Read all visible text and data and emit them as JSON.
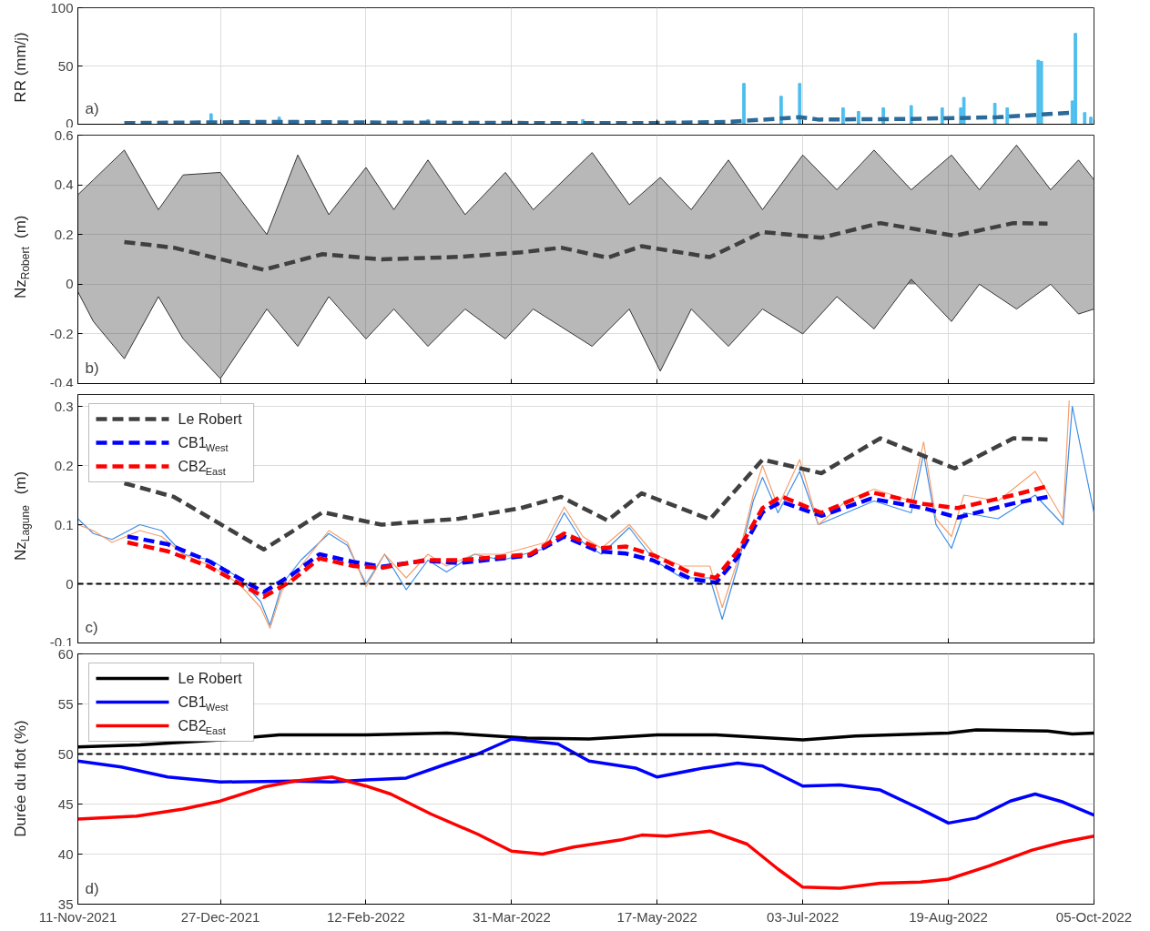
{
  "chart_data": [
    {
      "type": "bar",
      "ylabel": "RR (mm/j)",
      "annotations": [
        "a)"
      ],
      "xlim": [
        "2021-11-11",
        "2022-10-05"
      ],
      "ylim": [
        0,
        100
      ],
      "yticks": [
        0,
        50,
        100
      ],
      "grid": true,
      "tick_labels": "y",
      "xticks": [
        "2021-11-11",
        "2021-12-27",
        "2022-02-12",
        "2022-03-31",
        "2022-05-17",
        "2022-07-03",
        "2022-08-19",
        "2022-10-05"
      ],
      "series": [
        {
          "type": "bar",
          "color": "#4dbeee",
          "x": [
            "2021-12-24",
            "2022-01-15",
            "2022-03-04",
            "2022-04-23",
            "2022-06-14",
            "2022-06-26",
            "2022-07-02",
            "2022-07-16",
            "2022-07-21",
            "2022-07-29",
            "2022-08-07",
            "2022-08-17",
            "2022-08-23",
            "2022-08-24",
            "2022-09-03",
            "2022-09-07",
            "2022-09-17",
            "2022-09-18",
            "2022-09-28",
            "2022-09-29",
            "2022-10-02",
            "2022-10-04"
          ],
          "values": [
            9,
            6,
            4,
            4,
            35,
            24,
            35,
            14,
            11,
            14,
            16,
            14,
            14,
            23,
            18,
            14,
            55,
            54,
            20,
            78,
            10,
            6
          ]
        },
        {
          "type": "line",
          "line_style": "dashed",
          "color": "#2b6a99",
          "x": [
            "2021-11-26",
            "2022-01-14",
            "2022-02-12",
            "2022-04-11",
            "2022-05-16",
            "2022-06-09",
            "2022-07-02",
            "2022-07-08",
            "2022-08-06",
            "2022-09-04",
            "2022-09-28"
          ],
          "values": [
            1,
            2,
            1.5,
            1,
            1,
            2,
            6,
            4,
            4.5,
            6,
            10
          ]
        }
      ]
    },
    {
      "type": "line",
      "ylabel": "Nz$_{Robert}$ (m)",
      "annotations": [
        "b)"
      ],
      "xlim": [
        "2021-11-11",
        "2022-10-05"
      ],
      "ylim": [
        -0.4,
        0.6
      ],
      "yticks": [
        -0.4,
        -0.2,
        0,
        0.2,
        0.4,
        0.6
      ],
      "grid": true,
      "tick_labels": "y",
      "xticks": [
        "2021-11-11",
        "2021-12-27",
        "2022-02-12",
        "2022-03-31",
        "2022-05-17",
        "2022-07-03",
        "2022-08-19",
        "2022-10-05"
      ],
      "series": [
        {
          "type": "area",
          "color": "#333333",
          "x": [
            "2021-11-11",
            "2021-11-16",
            "2021-11-26",
            "2021-12-07",
            "2021-12-15",
            "2021-12-27",
            "2022-01-11",
            "2022-01-21",
            "2022-01-31",
            "2022-02-12",
            "2022-02-21",
            "2022-03-04",
            "2022-03-16",
            "2022-03-29",
            "2022-04-07",
            "2022-04-26",
            "2022-05-08",
            "2022-05-18",
            "2022-05-28",
            "2022-06-09",
            "2022-06-20",
            "2022-07-03",
            "2022-07-14",
            "2022-07-26",
            "2022-08-07",
            "2022-08-20",
            "2022-08-29",
            "2022-09-10",
            "2022-09-21",
            "2022-09-30",
            "2022-10-05"
          ],
          "values": [
            0.36,
            0.42,
            0.54,
            0.3,
            0.44,
            0.45,
            0.2,
            0.52,
            0.28,
            0.47,
            0.3,
            0.5,
            0.28,
            0.45,
            0.3,
            0.53,
            0.32,
            0.43,
            0.3,
            0.5,
            0.3,
            0.52,
            0.38,
            0.54,
            0.38,
            0.52,
            0.38,
            0.56,
            0.38,
            0.5,
            0.42
          ]
        },
        {
          "type": "area",
          "color": "#333333",
          "x": [
            "2021-11-11",
            "2021-11-16",
            "2021-11-26",
            "2021-12-07",
            "2021-12-15",
            "2021-12-27",
            "2022-01-11",
            "2022-01-21",
            "2022-01-31",
            "2022-02-12",
            "2022-02-21",
            "2022-03-04",
            "2022-03-16",
            "2022-03-29",
            "2022-04-07",
            "2022-04-26",
            "2022-05-08",
            "2022-05-18",
            "2022-05-28",
            "2022-06-09",
            "2022-06-20",
            "2022-07-03",
            "2022-07-14",
            "2022-07-26",
            "2022-08-07",
            "2022-08-20",
            "2022-08-29",
            "2022-09-10",
            "2022-09-21",
            "2022-09-30",
            "2022-10-05"
          ],
          "values": [
            -0.03,
            -0.15,
            -0.3,
            -0.05,
            -0.22,
            -0.38,
            -0.1,
            -0.25,
            -0.05,
            -0.22,
            -0.1,
            -0.25,
            -0.1,
            -0.22,
            -0.1,
            -0.25,
            -0.1,
            -0.35,
            -0.1,
            -0.25,
            -0.1,
            -0.2,
            -0.05,
            -0.18,
            0.02,
            -0.15,
            0.0,
            -0.1,
            0.0,
            -0.12,
            -0.1
          ]
        },
        {
          "line_style": "dashed",
          "color": "#404040",
          "x": [
            "2021-11-26",
            "2021-12-12",
            "2022-01-10",
            "2022-01-29",
            "2022-02-17",
            "2022-03-14",
            "2022-04-03",
            "2022-04-16",
            "2022-05-01",
            "2022-05-12",
            "2022-06-03",
            "2022-06-20",
            "2022-07-09",
            "2022-07-28",
            "2022-08-21",
            "2022-09-09",
            "2022-09-20"
          ],
          "values": [
            0.17,
            0.147,
            0.058,
            0.121,
            0.1,
            0.11,
            0.128,
            0.147,
            0.107,
            0.153,
            0.109,
            0.21,
            0.187,
            0.246,
            0.195,
            0.246,
            0.244
          ]
        }
      ]
    },
    {
      "type": "line",
      "ylabel": "Nz$_{Lagune}$ (m)",
      "annotations": [
        "c)"
      ],
      "xlim": [
        "2021-11-11",
        "2022-10-05"
      ],
      "ylim": [
        -0.1,
        0.32
      ],
      "yticks": [
        -0.1,
        0,
        0.1,
        0.2,
        0.3
      ],
      "grid": true,
      "tick_labels": "y",
      "legend": "top left",
      "xticks": [
        "2021-11-11",
        "2021-12-27",
        "2022-02-12",
        "2022-03-31",
        "2022-05-17",
        "2022-07-03",
        "2022-08-19",
        "2022-10-05"
      ],
      "ref_lines": [
        {
          "axis": "y",
          "value": 0,
          "color": "#000000",
          "line_style": "dashed"
        }
      ],
      "series": [
        {
          "color": "#3d8ee8",
          "x": [
            "2021-11-11",
            "2021-11-16",
            "2021-11-22",
            "2021-12-01",
            "2021-12-08",
            "2021-12-15",
            "2021-12-24",
            "2022-01-02",
            "2022-01-09",
            "2022-01-12",
            "2022-01-16",
            "2022-01-22",
            "2022-01-31",
            "2022-02-06",
            "2022-02-12",
            "2022-02-18",
            "2022-02-25",
            "2022-03-04",
            "2022-03-10",
            "2022-03-19",
            "2022-03-28",
            "2022-04-11",
            "2022-04-17",
            "2022-04-23",
            "2022-04-29",
            "2022-05-08",
            "2022-05-16",
            "2022-05-25",
            "2022-06-03",
            "2022-06-07",
            "2022-06-12",
            "2022-06-17",
            "2022-06-20",
            "2022-06-25",
            "2022-07-02",
            "2022-07-08",
            "2022-07-17",
            "2022-07-26",
            "2022-08-07",
            "2022-08-11",
            "2022-08-15",
            "2022-08-20",
            "2022-08-24",
            "2022-09-04",
            "2022-09-16",
            "2022-09-25",
            "2022-09-28",
            "2022-10-05"
          ],
          "values": [
            0.11,
            0.085,
            0.075,
            0.1,
            0.09,
            0.05,
            0.04,
            0.01,
            -0.03,
            -0.07,
            0.0,
            0.04,
            0.085,
            0.065,
            0.0,
            0.05,
            -0.01,
            0.04,
            0.02,
            0.05,
            0.04,
            0.06,
            0.12,
            0.07,
            0.05,
            0.095,
            0.04,
            0.01,
            0.01,
            -0.06,
            0.03,
            0.14,
            0.18,
            0.12,
            0.19,
            0.1,
            0.12,
            0.14,
            0.12,
            0.22,
            0.1,
            0.06,
            0.12,
            0.11,
            0.15,
            0.1,
            0.3,
            0.12
          ]
        },
        {
          "color": "#f5a06e",
          "x": [
            "2021-11-11",
            "2021-11-16",
            "2021-11-22",
            "2021-12-01",
            "2021-12-08",
            "2021-12-15",
            "2021-12-24",
            "2022-01-02",
            "2022-01-09",
            "2022-01-12",
            "2022-01-16",
            "2022-01-22",
            "2022-01-31",
            "2022-02-06",
            "2022-02-12",
            "2022-02-18",
            "2022-02-25",
            "2022-03-04",
            "2022-03-10",
            "2022-03-19",
            "2022-03-28",
            "2022-04-11",
            "2022-04-17",
            "2022-04-23",
            "2022-04-29",
            "2022-05-08",
            "2022-05-16",
            "2022-05-25",
            "2022-06-03",
            "2022-06-07",
            "2022-06-12",
            "2022-06-17",
            "2022-06-20",
            "2022-06-25",
            "2022-07-02",
            "2022-07-08",
            "2022-07-17",
            "2022-07-26",
            "2022-08-07",
            "2022-08-11",
            "2022-08-15",
            "2022-08-20",
            "2022-08-24",
            "2022-09-04",
            "2022-09-16",
            "2022-09-25",
            "2022-09-27"
          ],
          "values": [
            0.1,
            0.09,
            0.07,
            0.09,
            0.08,
            0.05,
            0.03,
            0.0,
            -0.04,
            -0.075,
            -0.01,
            0.03,
            0.09,
            0.07,
            -0.005,
            0.05,
            0.01,
            0.05,
            0.03,
            0.05,
            0.05,
            0.07,
            0.13,
            0.08,
            0.06,
            0.1,
            0.05,
            0.03,
            0.03,
            -0.04,
            0.04,
            0.15,
            0.2,
            0.13,
            0.21,
            0.1,
            0.14,
            0.16,
            0.14,
            0.24,
            0.11,
            0.08,
            0.15,
            0.14,
            0.19,
            0.11,
            0.31
          ]
        },
        {
          "name": "Le Robert",
          "line_style": "dashed",
          "color": "#404040",
          "x": [
            "2021-11-26",
            "2021-12-12",
            "2022-01-10",
            "2022-01-29",
            "2022-02-17",
            "2022-03-14",
            "2022-04-03",
            "2022-04-16",
            "2022-05-01",
            "2022-05-12",
            "2022-06-03",
            "2022-06-20",
            "2022-07-09",
            "2022-07-28",
            "2022-08-21",
            "2022-09-09",
            "2022-09-20"
          ],
          "values": [
            0.17,
            0.147,
            0.058,
            0.121,
            0.1,
            0.11,
            0.128,
            0.147,
            0.107,
            0.153,
            0.109,
            0.21,
            0.187,
            0.246,
            0.195,
            0.246,
            0.244
          ]
        },
        {
          "name": "CB1$_{West}$",
          "line_style": "dashed",
          "color": "#0000ff",
          "x": [
            "2021-11-27",
            "2021-12-10",
            "2021-12-23",
            "2022-01-10",
            "2022-01-19",
            "2022-01-28",
            "2022-02-08",
            "2022-02-17",
            "2022-03-03",
            "2022-03-14",
            "2022-04-06",
            "2022-04-17",
            "2022-04-28",
            "2022-05-07",
            "2022-05-16",
            "2022-05-28",
            "2022-06-05",
            "2022-06-12",
            "2022-06-20",
            "2022-06-26",
            "2022-07-09",
            "2022-07-25",
            "2022-08-11",
            "2022-08-22",
            "2022-09-09",
            "2022-09-20"
          ],
          "values": [
            0.08,
            0.067,
            0.039,
            -0.014,
            0.015,
            0.05,
            0.037,
            0.029,
            0.039,
            0.035,
            0.048,
            0.08,
            0.055,
            0.051,
            0.039,
            0.008,
            0.002,
            0.045,
            0.121,
            0.139,
            0.115,
            0.144,
            0.128,
            0.112,
            0.136,
            0.147
          ]
        },
        {
          "name": "CB2$_{East}$",
          "line_style": "dashed",
          "color": "#ff0000",
          "x": [
            "2021-11-27",
            "2021-12-10",
            "2021-12-23",
            "2022-01-10",
            "2022-01-19",
            "2022-01-28",
            "2022-02-08",
            "2022-02-17",
            "2022-03-03",
            "2022-03-14",
            "2022-04-06",
            "2022-04-17",
            "2022-04-28",
            "2022-05-07",
            "2022-05-16",
            "2022-05-28",
            "2022-06-05",
            "2022-06-12",
            "2022-06-20",
            "2022-06-26",
            "2022-07-09",
            "2022-07-25",
            "2022-08-11",
            "2022-08-22",
            "2022-09-09",
            "2022-09-20"
          ],
          "values": [
            0.07,
            0.055,
            0.03,
            -0.022,
            0.005,
            0.043,
            0.03,
            0.027,
            0.04,
            0.04,
            0.05,
            0.085,
            0.06,
            0.063,
            0.048,
            0.018,
            0.01,
            0.055,
            0.128,
            0.148,
            0.12,
            0.155,
            0.135,
            0.128,
            0.15,
            0.165
          ]
        }
      ]
    },
    {
      "type": "line",
      "ylabel": "Durée du flot (%)",
      "annotations": [
        "d)"
      ],
      "xlim": [
        "2021-11-11",
        "2022-10-05"
      ],
      "ylim": [
        35,
        60
      ],
      "yticks": [
        35,
        40,
        45,
        50,
        55,
        60
      ],
      "grid": true,
      "legend": "top left",
      "xticks": [
        {
          "value": "2021-11-11",
          "label": "11-Nov-2021"
        },
        {
          "value": "2021-12-27",
          "label": "27-Dec-2021"
        },
        {
          "value": "2022-02-12",
          "label": "12-Feb-2022"
        },
        {
          "value": "2022-03-31",
          "label": "31-Mar-2022"
        },
        {
          "value": "2022-05-17",
          "label": "17-May-2022"
        },
        {
          "value": "2022-07-03",
          "label": "03-Jul-2022"
        },
        {
          "value": "2022-08-19",
          "label": "19-Aug-2022"
        },
        {
          "value": "2022-10-05",
          "label": "05-Oct-2022"
        }
      ],
      "ref_lines": [
        {
          "axis": "y",
          "value": 50,
          "color": "#000000",
          "line_style": "dashed"
        }
      ],
      "series": [
        {
          "name": "Le Robert",
          "color": "#000000",
          "x": [
            "2021-11-11",
            "2021-12-01",
            "2021-12-27",
            "2022-01-15",
            "2022-02-12",
            "2022-03-10",
            "2022-04-05",
            "2022-04-25",
            "2022-05-17",
            "2022-06-05",
            "2022-07-03",
            "2022-07-20",
            "2022-08-19",
            "2022-08-28",
            "2022-09-20",
            "2022-09-28",
            "2022-10-05"
          ],
          "values": [
            50.7,
            50.9,
            51.4,
            51.9,
            51.9,
            52.1,
            51.6,
            51.5,
            51.9,
            51.9,
            51.4,
            51.8,
            52.1,
            52.4,
            52.3,
            52.0,
            52.1
          ]
        },
        {
          "name": "CB1$_{West}$",
          "color": "#0000ff",
          "x": [
            "2021-11-11",
            "2021-11-25",
            "2021-12-10",
            "2021-12-27",
            "2022-01-20",
            "2022-02-01",
            "2022-02-12",
            "2022-02-25",
            "2022-03-10",
            "2022-03-20",
            "2022-03-31",
            "2022-04-15",
            "2022-04-25",
            "2022-05-10",
            "2022-05-17",
            "2022-06-01",
            "2022-06-12",
            "2022-06-20",
            "2022-07-03",
            "2022-07-15",
            "2022-07-28",
            "2022-08-10",
            "2022-08-19",
            "2022-08-28",
            "2022-09-08",
            "2022-09-16",
            "2022-09-25",
            "2022-10-05"
          ],
          "values": [
            49.3,
            48.7,
            47.7,
            47.2,
            47.3,
            47.2,
            47.4,
            47.6,
            49.0,
            50.0,
            51.5,
            51.0,
            49.3,
            48.6,
            47.7,
            48.6,
            49.1,
            48.8,
            46.8,
            46.9,
            46.4,
            44.5,
            43.1,
            43.6,
            45.3,
            46.0,
            45.2,
            43.9
          ]
        },
        {
          "name": "CB2$_{East}$",
          "color": "#ff0000",
          "x": [
            "2021-11-11",
            "2021-11-30",
            "2021-12-15",
            "2021-12-27",
            "2022-01-10",
            "2022-01-20",
            "2022-02-01",
            "2022-02-12",
            "2022-02-20",
            "2022-03-05",
            "2022-03-20",
            "2022-03-31",
            "2022-04-10",
            "2022-04-20",
            "2022-05-05",
            "2022-05-12",
            "2022-05-20",
            "2022-06-03",
            "2022-06-15",
            "2022-06-25",
            "2022-07-03",
            "2022-07-15",
            "2022-07-28",
            "2022-08-10",
            "2022-08-19",
            "2022-09-01",
            "2022-09-15",
            "2022-09-25",
            "2022-10-05"
          ],
          "values": [
            43.5,
            43.8,
            44.5,
            45.3,
            46.7,
            47.3,
            47.7,
            46.8,
            46.0,
            44.0,
            42.0,
            40.3,
            40.0,
            40.7,
            41.4,
            41.9,
            41.8,
            42.3,
            41.0,
            38.5,
            36.7,
            36.6,
            37.1,
            37.2,
            37.5,
            38.8,
            40.4,
            41.2,
            41.8
          ]
        }
      ]
    }
  ]
}
